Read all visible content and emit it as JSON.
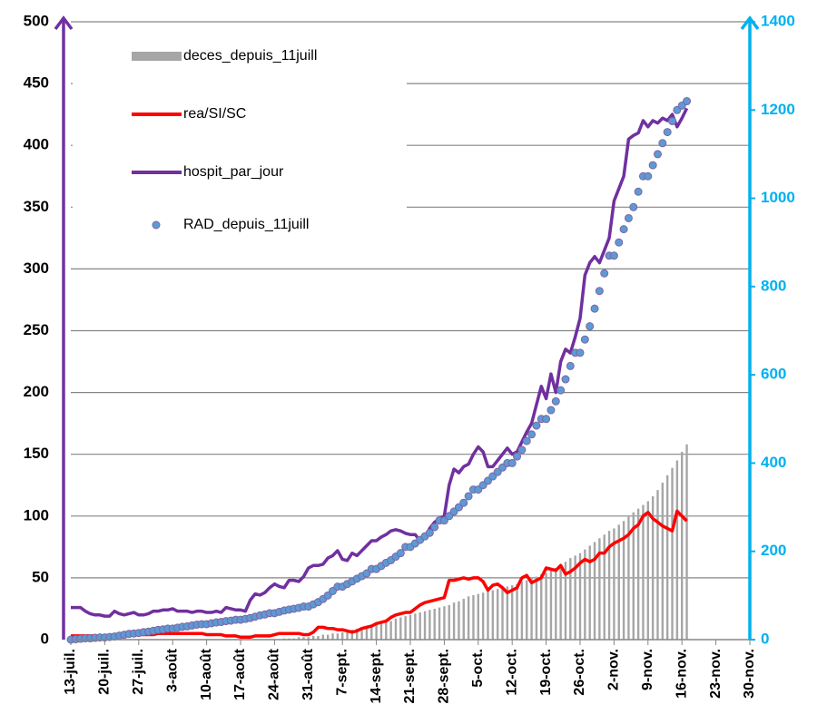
{
  "chart_data": {
    "type": "combo",
    "categories": [
      "13-juil.",
      null,
      null,
      null,
      null,
      null,
      null,
      "20-juil.",
      null,
      null,
      null,
      null,
      null,
      null,
      "27-juil.",
      null,
      null,
      null,
      null,
      null,
      null,
      "3-août",
      null,
      null,
      null,
      null,
      null,
      null,
      "10-août",
      null,
      null,
      null,
      null,
      null,
      null,
      "17-août",
      null,
      null,
      null,
      null,
      null,
      null,
      "24-août",
      null,
      null,
      null,
      null,
      null,
      null,
      "31-août",
      null,
      null,
      null,
      null,
      null,
      null,
      "7-sept.",
      null,
      null,
      null,
      null,
      null,
      null,
      "14-sept.",
      null,
      null,
      null,
      null,
      null,
      null,
      "21-sept.",
      null,
      null,
      null,
      null,
      null,
      null,
      "28-sept.",
      null,
      null,
      null,
      null,
      null,
      null,
      "5-oct.",
      null,
      null,
      null,
      null,
      null,
      null,
      "12-oct.",
      null,
      null,
      null,
      null,
      null,
      null,
      "19-oct.",
      null,
      null,
      null,
      null,
      null,
      null,
      "26-oct.",
      null,
      null,
      null,
      null,
      null,
      null,
      "2-nov.",
      null,
      null,
      null,
      null,
      null,
      null,
      "9-nov.",
      null,
      null,
      null,
      null,
      null,
      null,
      "16-nov.",
      null,
      null,
      null,
      null,
      null,
      null,
      "23-nov.",
      null,
      null,
      null,
      null,
      null,
      null,
      "30-nov."
    ],
    "series": [
      {
        "name": "deces_depuis_11juill",
        "type": "bar",
        "color": "#a6a6a6",
        "values": [
          0,
          0,
          0,
          0,
          0,
          0,
          0,
          0,
          0,
          0,
          0,
          0,
          0,
          0,
          0,
          0,
          0,
          0,
          0,
          0,
          0,
          0,
          0,
          0,
          0,
          0,
          0,
          0,
          0,
          0,
          0,
          0,
          0,
          0,
          0,
          0,
          0,
          0,
          0,
          0,
          0,
          0,
          0,
          0,
          1,
          1,
          1,
          2,
          2,
          2,
          3,
          3,
          4,
          4,
          5,
          5,
          6,
          7,
          8,
          9,
          10,
          11,
          11,
          12,
          13,
          14,
          15,
          17,
          18,
          19,
          20,
          21,
          22,
          23,
          24,
          25,
          26,
          27,
          28,
          30,
          31,
          33,
          35,
          36,
          37,
          38,
          39,
          40,
          41,
          42,
          43,
          44,
          45,
          47,
          48,
          50,
          51,
          53,
          54,
          56,
          58,
          61,
          63,
          66,
          68,
          70,
          73,
          76,
          79,
          82,
          85,
          88,
          90,
          93,
          96,
          100,
          103,
          106,
          109,
          112,
          116,
          121,
          127,
          133,
          139,
          145,
          152,
          158,
          null,
          null,
          null,
          null,
          null,
          null,
          null,
          null,
          null,
          null,
          null,
          null,
          null
        ]
      },
      {
        "name": "rea/SI/SC",
        "type": "line",
        "color": "#ff0000",
        "values": [
          3,
          3,
          3,
          3,
          3,
          3,
          3,
          3,
          3,
          3,
          4,
          4,
          4,
          4,
          4,
          4,
          4,
          4,
          5,
          5,
          5,
          5,
          5,
          5,
          5,
          5,
          5,
          5,
          4,
          4,
          4,
          4,
          3,
          3,
          3,
          2,
          2,
          2,
          3,
          3,
          3,
          3,
          4,
          5,
          5,
          5,
          5,
          5,
          4,
          4,
          6,
          10,
          10,
          9,
          9,
          8,
          8,
          7,
          6,
          7,
          9,
          10,
          11,
          13,
          14,
          15,
          18,
          20,
          21,
          22,
          22,
          25,
          28,
          30,
          31,
          32,
          33,
          34,
          48,
          48,
          49,
          50,
          49,
          50,
          50,
          47,
          40,
          44,
          45,
          42,
          38,
          40,
          42,
          50,
          52,
          46,
          48,
          50,
          58,
          57,
          56,
          60,
          53,
          55,
          58,
          62,
          65,
          63,
          65,
          70,
          70,
          75,
          78,
          80,
          82,
          85,
          90,
          93,
          100,
          103,
          98,
          95,
          92,
          90,
          88,
          104,
          100,
          96,
          null,
          null,
          null,
          null,
          null,
          null,
          null,
          null,
          null,
          null,
          null,
          null,
          null
        ]
      },
      {
        "name": "hospit_par_jour",
        "type": "line",
        "color": "#7030a0",
        "values": [
          26,
          26,
          26,
          23,
          21,
          20,
          20,
          19,
          19,
          23,
          21,
          20,
          21,
          22,
          20,
          20,
          21,
          23,
          23,
          24,
          24,
          25,
          23,
          23,
          23,
          22,
          23,
          23,
          22,
          22,
          23,
          22,
          26,
          25,
          24,
          24,
          23,
          32,
          37,
          36,
          38,
          42,
          45,
          43,
          42,
          48,
          48,
          47,
          51,
          58,
          60,
          60,
          61,
          66,
          68,
          72,
          65,
          64,
          70,
          68,
          72,
          76,
          80,
          80,
          83,
          85,
          88,
          89,
          88,
          86,
          85,
          85,
          80,
          82,
          90,
          95,
          98,
          100,
          125,
          138,
          135,
          140,
          142,
          150,
          156,
          152,
          140,
          140,
          145,
          150,
          155,
          150,
          152,
          160,
          168,
          175,
          190,
          205,
          195,
          215,
          200,
          225,
          235,
          232,
          245,
          260,
          295,
          305,
          310,
          305,
          315,
          325,
          355,
          365,
          375,
          405,
          408,
          410,
          420,
          415,
          420,
          418,
          422,
          420,
          425,
          415,
          422,
          430,
          null,
          null,
          null,
          null,
          null,
          null,
          null,
          null,
          null,
          null,
          null,
          null,
          null
        ]
      },
      {
        "name": "RAD_depuis_11juill",
        "type": "scatter",
        "axis": "y2",
        "color": "#5b9bd5",
        "values": [
          0,
          1,
          2,
          3,
          3,
          4,
          5,
          5,
          6,
          7,
          9,
          11,
          13,
          14,
          15,
          17,
          18,
          20,
          22,
          23,
          25,
          25,
          27,
          29,
          30,
          32,
          34,
          35,
          35,
          37,
          39,
          40,
          42,
          43,
          45,
          45,
          47,
          49,
          52,
          55,
          57,
          60,
          60,
          63,
          66,
          68,
          70,
          72,
          75,
          75,
          80,
          85,
          92,
          100,
          110,
          120,
          120,
          126,
          132,
          138,
          144,
          150,
          160,
          160,
          167,
          174,
          180,
          188,
          196,
          210,
          210,
          218,
          226,
          234,
          242,
          255,
          270,
          270,
          280,
          290,
          300,
          310,
          325,
          340,
          340,
          350,
          360,
          370,
          380,
          390,
          400,
          400,
          415,
          430,
          450,
          465,
          485,
          500,
          500,
          520,
          540,
          565,
          590,
          620,
          650,
          650,
          680,
          710,
          750,
          790,
          830,
          870,
          870,
          900,
          930,
          955,
          980,
          1015,
          1050,
          1050,
          1075,
          1100,
          1125,
          1150,
          1175,
          1200,
          1210,
          1220,
          null,
          null,
          null,
          null,
          null,
          null,
          null,
          null,
          null,
          null,
          null,
          null,
          null
        ]
      }
    ],
    "ylim": [
      0,
      500
    ],
    "yticks": [
      0,
      50,
      100,
      150,
      200,
      250,
      300,
      350,
      400,
      450,
      500
    ],
    "y2lim": [
      0,
      1400
    ],
    "y2ticks": [
      0,
      200,
      400,
      600,
      800,
      1000,
      1200,
      1400
    ],
    "grid": true,
    "legend": "top-left",
    "y_axis_color": "#7030a0",
    "y2_axis_color": "#00b0f0"
  }
}
